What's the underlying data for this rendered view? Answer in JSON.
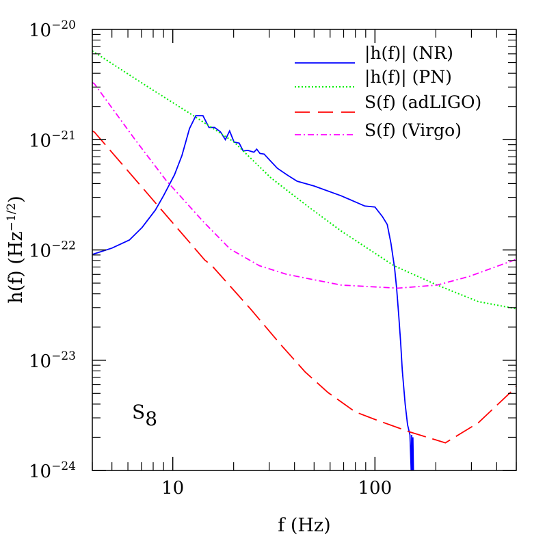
{
  "chart_data": {
    "type": "line",
    "title": "",
    "xlabel": "f  (Hz)",
    "ylabel_main": "h(f)  (Hz",
    "ylabel_exp": "−1/2",
    "ylabel_close": ")",
    "xscale": "log",
    "yscale": "log",
    "xlim": [
      4,
      500
    ],
    "ylim": [
      1e-24,
      1e-20
    ],
    "x_ticks": [
      {
        "value": 10,
        "label": "10"
      },
      {
        "value": 100,
        "label": "100"
      }
    ],
    "y_ticks": [
      {
        "value": 1e-20,
        "base": "10",
        "exp": "−20"
      },
      {
        "value": 1e-21,
        "base": "10",
        "exp": "−21"
      },
      {
        "value": 1e-22,
        "base": "10",
        "exp": "−22"
      },
      {
        "value": 1e-23,
        "base": "10",
        "exp": "−23"
      },
      {
        "value": 1e-24,
        "base": "10",
        "exp": "−24"
      }
    ],
    "grid": false,
    "legend_position": "top-right",
    "annotation": {
      "main": "S",
      "sub": "8"
    },
    "series": [
      {
        "name": "|h(f)|  (NR)",
        "color": "#0000ff",
        "style": "solid",
        "points": [
          [
            4,
            9.1e-23
          ],
          [
            5,
            1.04e-22
          ],
          [
            6.1,
            1.23e-22
          ],
          [
            7.05,
            1.6e-22
          ],
          [
            8.2,
            2.3e-22
          ],
          [
            9,
            3.1e-22
          ],
          [
            10.2,
            4.8e-22
          ],
          [
            11.1,
            7.2e-22
          ],
          [
            12.1,
            1.26e-21
          ],
          [
            13,
            1.65e-21
          ],
          [
            14.1,
            1.65e-21
          ],
          [
            15.1,
            1.29e-21
          ],
          [
            16.1,
            1.29e-21
          ],
          [
            17.2,
            1.18e-21
          ],
          [
            18.2,
            1e-21
          ],
          [
            19.1,
            1.2e-21
          ],
          [
            20.1,
            9.5e-22
          ],
          [
            21.3,
            9.3e-22
          ],
          [
            22.3,
            7.9e-22
          ],
          [
            23.5,
            8e-22
          ],
          [
            25.2,
            7.7e-22
          ],
          [
            26,
            8.2e-22
          ],
          [
            27,
            7.5e-22
          ],
          [
            28.3,
            7.4e-22
          ],
          [
            30.2,
            6.5e-22
          ],
          [
            32.9,
            5.5e-22
          ],
          [
            36.7,
            4.8e-22
          ],
          [
            41.2,
            4.2e-22
          ],
          [
            50,
            3.8e-22
          ],
          [
            68,
            3.1e-22
          ],
          [
            89,
            2.5e-22
          ],
          [
            100,
            2.45e-22
          ],
          [
            109,
            2e-22
          ],
          [
            115,
            1.7e-22
          ],
          [
            120,
            1.15e-22
          ],
          [
            125,
            6.9e-23
          ],
          [
            128,
            4.5e-23
          ],
          [
            131,
            2.6e-23
          ],
          [
            134,
            1.45e-23
          ],
          [
            136.5,
            8.1e-24
          ],
          [
            141,
            4e-24
          ],
          [
            145,
            2.6e-24
          ],
          [
            149,
            2.1e-24
          ],
          [
            151,
            1e-24
          ],
          [
            152,
            2.1e-24
          ],
          [
            153,
            1e-24
          ],
          [
            154,
            2e-24
          ],
          [
            155,
            1e-24
          ]
        ]
      },
      {
        "name": "|h(f)|  (PN)",
        "color": "#00ee00",
        "style": "dotted",
        "points": [
          [
            4,
            6.4e-21
          ],
          [
            4.1,
            6.2e-21
          ],
          [
            7.56,
            3e-21
          ],
          [
            12.6,
            1.66e-21
          ],
          [
            20.1,
            9.5e-22
          ],
          [
            30.6,
            4.5e-22
          ],
          [
            46.3,
            2.5e-22
          ],
          [
            68.2,
            1.48e-22
          ],
          [
            124,
            7.2e-23
          ],
          [
            203,
            4.8e-23
          ],
          [
            324,
            3.4e-23
          ],
          [
            489,
            2.95e-23
          ],
          [
            500,
            2.93e-23
          ]
        ]
      },
      {
        "name": "S(f)  (adLIGO)",
        "color": "#ff0000",
        "style": "dashed",
        "points": [
          [
            4,
            1.2e-21
          ],
          [
            4.1,
            1.17e-21
          ],
          [
            14.4,
            8.1e-23
          ],
          [
            15.6,
            7.2e-23
          ],
          [
            24.3,
            2.9e-23
          ],
          [
            33.9,
            1.41e-23
          ],
          [
            45.2,
            7.8e-24
          ],
          [
            58.5,
            5.1e-24
          ],
          [
            79.8,
            3.4e-24
          ],
          [
            100,
            2.9e-24
          ],
          [
            148,
            2.24e-24
          ],
          [
            223,
            1.78e-24
          ],
          [
            324,
            2.7e-24
          ],
          [
            489,
            5.5e-24
          ],
          [
            500,
            5.8e-24
          ]
        ]
      },
      {
        "name": "S(f)  (Virgo)",
        "color": "#ff00ff",
        "style": "dashdot",
        "points": [
          [
            4,
            3.3e-21
          ],
          [
            4.1,
            3.2e-21
          ],
          [
            6.46,
            1.02e-21
          ],
          [
            9.25,
            4.3e-22
          ],
          [
            14.1,
            1.82e-22
          ],
          [
            19.2,
            1.02e-22
          ],
          [
            26.8,
            7.2e-23
          ],
          [
            36.7,
            6e-23
          ],
          [
            68,
            4.8e-23
          ],
          [
            130,
            4.5e-23
          ],
          [
            203,
            4.8e-23
          ],
          [
            292,
            5.75e-23
          ],
          [
            489,
            8.1e-23
          ],
          [
            500,
            8.3e-23
          ]
        ]
      }
    ]
  }
}
